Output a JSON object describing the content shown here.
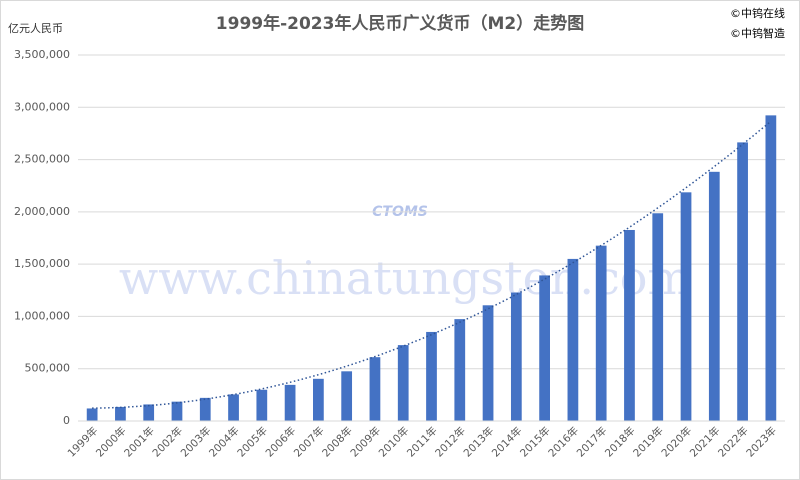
{
  "chart_data": {
    "type": "bar",
    "title": "1999年-2023年人民币广义货币（M2）走势图",
    "y_axis_label": "亿元人民币",
    "credits": [
      "©中钨在线",
      "©中钨智造"
    ],
    "watermark": "www.chinatungsten.com",
    "watermark_logo": "CTOMS",
    "categories": [
      "1999年",
      "2000年",
      "2001年",
      "2002年",
      "2003年",
      "2004年",
      "2005年",
      "2006年",
      "2007年",
      "2008年",
      "2009年",
      "2010年",
      "2011年",
      "2012年",
      "2013年",
      "2014年",
      "2015年",
      "2016年",
      "2017年",
      "2018年",
      "2019年",
      "2020年",
      "2021年",
      "2022年",
      "2023年"
    ],
    "values": [
      119898,
      134610,
      158302,
      185007,
      221223,
      254107,
      298756,
      345578,
      403442,
      475167,
      610225,
      725852,
      851591,
      974149,
      1106525,
      1228375,
      1392278,
      1550067,
      1676769,
      1826744,
      1986488,
      2186796,
      2382900,
      2664321,
      2922713
    ],
    "color": "#4472c4",
    "trendline": true,
    "trendline_color": "#2f5597",
    "ylim": [
      0,
      3500000
    ],
    "yticks": [
      0,
      {
        "value": 500000,
        "label": "500,000"
      },
      {
        "value": 1000000,
        "label": "1,000,000"
      },
      {
        "value": 1500000,
        "label": "1,500,000"
      },
      {
        "value": 2000000,
        "label": "2,000,000"
      },
      {
        "value": 2500000,
        "label": "2,500,000"
      },
      {
        "value": 3000000,
        "label": "3,000,000"
      },
      {
        "value": 3500000,
        "label": "3,500,000"
      }
    ],
    "grid": true
  }
}
